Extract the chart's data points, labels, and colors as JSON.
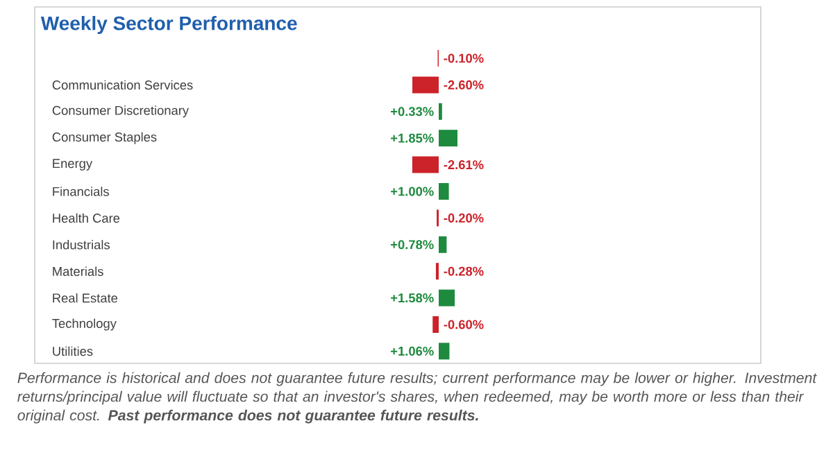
{
  "chart_data": {
    "type": "bar",
    "orientation": "horizontal",
    "title": "Weekly Sector Performance",
    "categories": [
      null,
      "Communication Services",
      "Consumer Discretionary",
      "Consumer Staples",
      "Energy",
      "Financials",
      "Health Care",
      "Industrials",
      "Materials",
      "Real Estate",
      "Technology",
      "Utilities"
    ],
    "values": [
      -0.1,
      -2.6,
      0.33,
      1.85,
      -2.61,
      1.0,
      -0.2,
      0.78,
      -0.28,
      1.58,
      -0.6,
      1.06
    ],
    "value_labels": [
      "-0.10%",
      "-2.60%",
      "+0.33%",
      "+1.85%",
      "-2.61%",
      "+1.00%",
      "-0.20%",
      "+0.78%",
      "-0.28%",
      "+1.58%",
      "-0.60%",
      "+1.06%"
    ],
    "colors": [
      "#cc2229",
      "#cc2229",
      "#1e8a3e",
      "#1e8a3e",
      "#cc2229",
      "#1e8a3e",
      "#cc2229",
      "#1e8a3e",
      "#cc2229",
      "#1e8a3e",
      "#cc2229",
      "#1e8a3e"
    ],
    "annotations": [
      "Performance is historical and does not guarantee future results; current performance may be lower or higher. Investment returns/principal value will fluctuate so that an investor's shares, when redeemed, may be worth more or less than their original cost. **Past performance does not guarantee future results.**"
    ]
  }
}
